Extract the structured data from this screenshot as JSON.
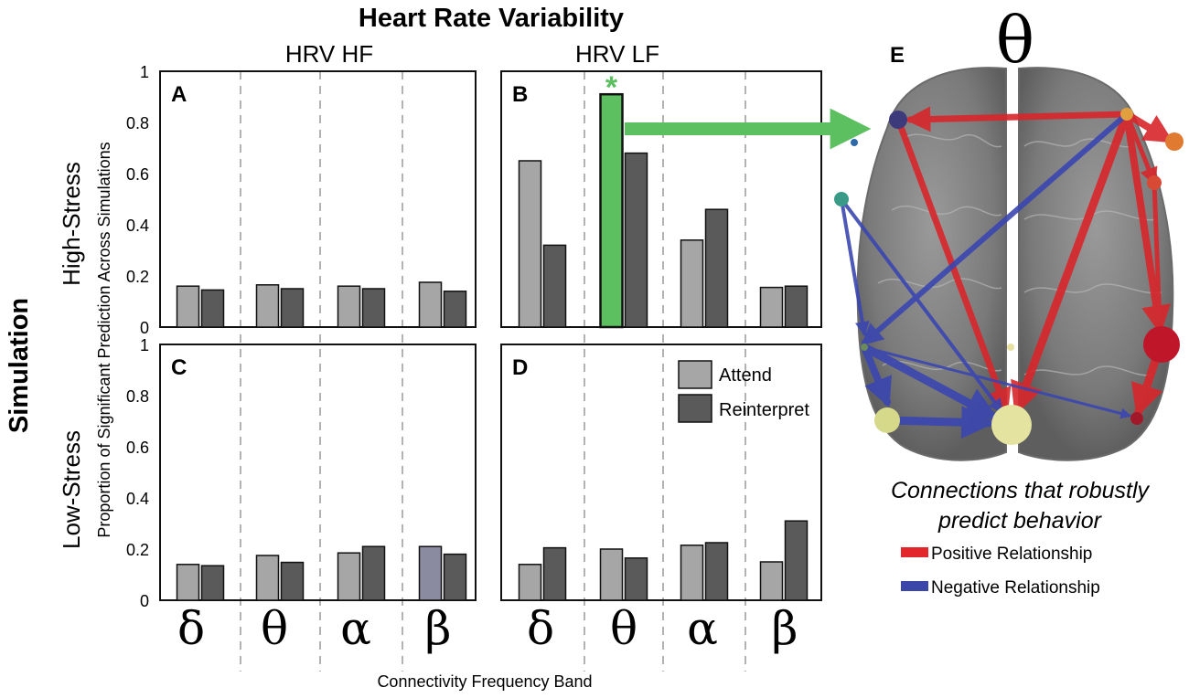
{
  "figure": {
    "title": "Heart Rate Variability",
    "col_headers": [
      "HRV HF",
      "HRV LF"
    ],
    "row_super_label": "Simulation",
    "row_labels": [
      "High-Stress",
      "Low-Stress"
    ],
    "ylabel": "Proportion of Significant Prediction Across Simulations",
    "xlabel": "Connectivity Frequency Band",
    "band_symbols": [
      "δ",
      "θ",
      "α",
      "β"
    ],
    "significance_marker": "*"
  },
  "chart_data": [
    {
      "type": "bar",
      "panel": "A",
      "condition": "High-Stress",
      "measure": "HRV HF",
      "categories": [
        "δ",
        "θ",
        "α",
        "β"
      ],
      "series": [
        {
          "name": "Attend",
          "values": [
            0.16,
            0.165,
            0.16,
            0.175
          ]
        },
        {
          "name": "Reinterpret",
          "values": [
            0.145,
            0.15,
            0.15,
            0.14
          ]
        }
      ],
      "ylim": [
        0,
        1
      ],
      "yticks": [
        "0",
        "0.2",
        "0.4",
        "0.6",
        "0.8",
        "1"
      ]
    },
    {
      "type": "bar",
      "panel": "B",
      "condition": "High-Stress",
      "measure": "HRV LF",
      "categories": [
        "δ",
        "θ",
        "α",
        "β"
      ],
      "series": [
        {
          "name": "Attend",
          "values": [
            0.65,
            0.91,
            0.34,
            0.155
          ]
        },
        {
          "name": "Reinterpret",
          "values": [
            0.32,
            0.68,
            0.46,
            0.16
          ]
        }
      ],
      "highlight": {
        "series": "Attend",
        "category": "θ",
        "color": "#5cbf60",
        "marker": "*"
      },
      "ylim": [
        0,
        1
      ],
      "yticks": [
        "0",
        "0.2",
        "0.4",
        "0.6",
        "0.8",
        "1"
      ]
    },
    {
      "type": "bar",
      "panel": "C",
      "condition": "Low-Stress",
      "measure": "HRV HF",
      "categories": [
        "δ",
        "θ",
        "α",
        "β"
      ],
      "series": [
        {
          "name": "Attend",
          "values": [
            0.14,
            0.175,
            0.185,
            0.21
          ]
        },
        {
          "name": "Reinterpret",
          "values": [
            0.135,
            0.148,
            0.21,
            0.18
          ]
        }
      ],
      "special_fill": {
        "series": "Attend",
        "category": "β",
        "color": "#8a8aa0"
      },
      "ylim": [
        0,
        1
      ],
      "yticks": [
        "0",
        "0.2",
        "0.4",
        "0.6",
        "0.8",
        "1"
      ]
    },
    {
      "type": "bar",
      "panel": "D",
      "condition": "Low-Stress",
      "measure": "HRV LF",
      "categories": [
        "δ",
        "θ",
        "α",
        "β"
      ],
      "series": [
        {
          "name": "Attend",
          "values": [
            0.14,
            0.2,
            0.215,
            0.15
          ]
        },
        {
          "name": "Reinterpret",
          "values": [
            0.205,
            0.165,
            0.225,
            0.31
          ]
        }
      ],
      "ylim": [
        0,
        1
      ],
      "yticks": [
        "0",
        "0.2",
        "0.4",
        "0.6",
        "0.8",
        "1"
      ]
    }
  ],
  "legend": {
    "items": [
      {
        "label": "Attend",
        "color": "#a6a6a6"
      },
      {
        "label": "Reinterpret",
        "color": "#5a5a5a"
      }
    ],
    "placement": "top-right of panel D"
  },
  "colors": {
    "attend": "#a6a6a6",
    "reinterpret": "#5a5a5a",
    "highlight": "#5cbf60",
    "positive": "#e3262b",
    "negative": "#3a46a8"
  },
  "brain_panel": {
    "label": "E",
    "band_title": "θ",
    "caption_lines": [
      "Connections that robustly",
      "predict behavior"
    ],
    "legend": [
      {
        "label": "Positive Relationship",
        "color": "#e3262b"
      },
      {
        "label": "Negative Relationship",
        "color": "#3a46a8"
      }
    ]
  }
}
